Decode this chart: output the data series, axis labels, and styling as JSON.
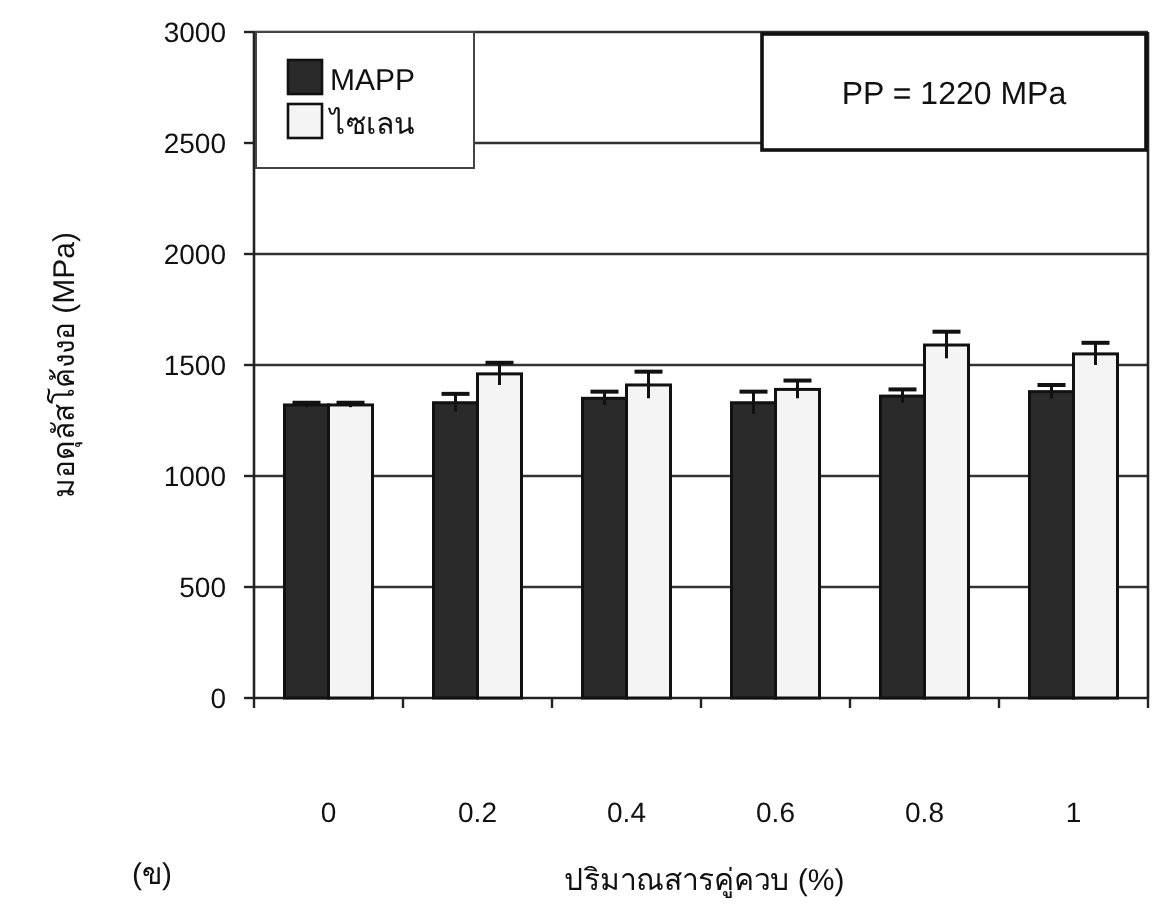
{
  "chart_data": {
    "type": "bar",
    "xlabel": "ปริมาณสารคู่ควบ (%)",
    "ylabel": "มอดุลัสโค้งงอ (MPa)",
    "categories": [
      "0",
      "0.2",
      "0.4",
      "0.6",
      "0.8",
      "1"
    ],
    "series": [
      {
        "name": "MAPP",
        "color": "#2a2a2a",
        "values": [
          1320,
          1330,
          1350,
          1330,
          1360,
          1380
        ],
        "errors": [
          10,
          40,
          30,
          50,
          30,
          30
        ]
      },
      {
        "name": "ไซเลน",
        "color": "#f4f4f4",
        "values": [
          1320,
          1460,
          1410,
          1390,
          1590,
          1550
        ],
        "errors": [
          10,
          50,
          60,
          40,
          60,
          50
        ]
      }
    ],
    "ylim": [
      0,
      3000
    ],
    "yticks": [
      0,
      500,
      1000,
      1500,
      2000,
      2500,
      3000
    ],
    "grid": "y",
    "legend": "top left",
    "annotations": [
      "PP = 1220 MPa",
      "(ข)"
    ]
  }
}
